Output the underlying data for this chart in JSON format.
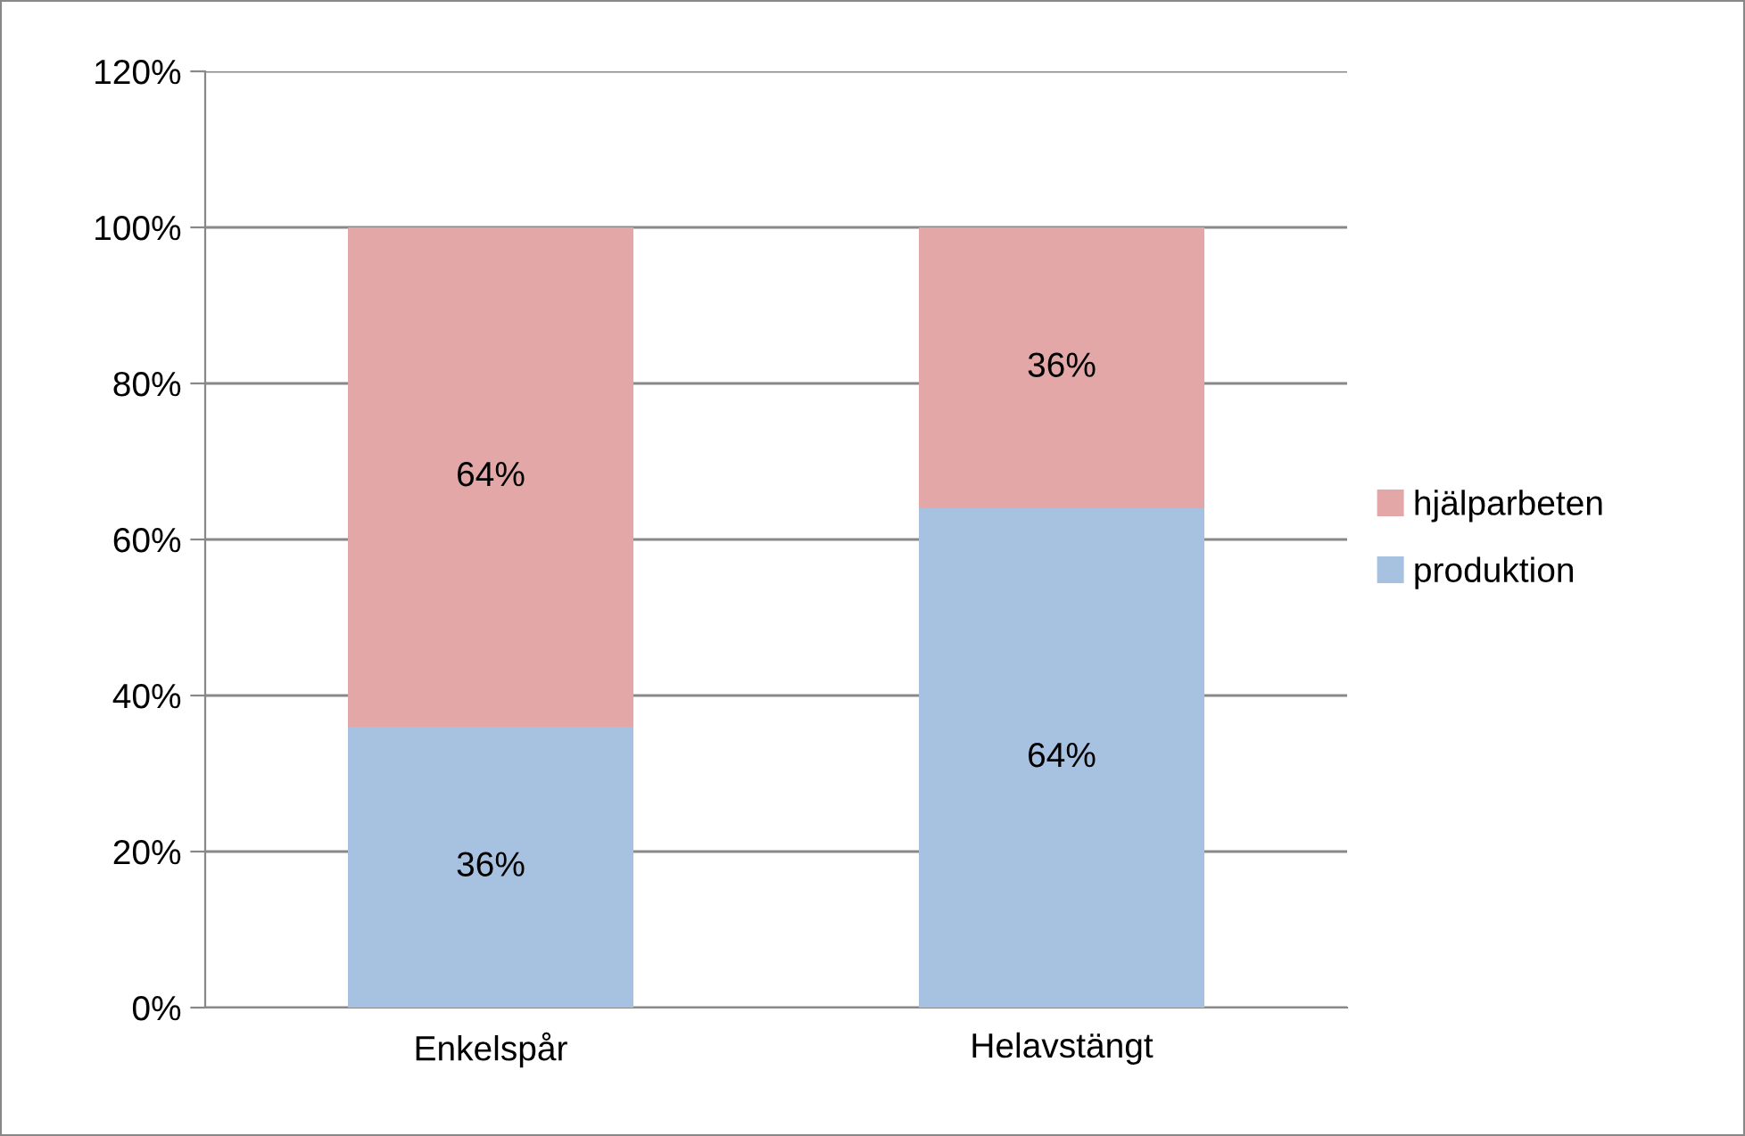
{
  "chart_data": {
    "type": "bar",
    "stacked": true,
    "categories": [
      "Enkelspår",
      "Helavstängt"
    ],
    "series": [
      {
        "name": "produktion",
        "color": "#a7c1e0",
        "values": [
          36,
          64
        ],
        "value_labels": [
          "36%",
          "64%"
        ]
      },
      {
        "name": "hjälparbeten",
        "color": "#e2a7a6",
        "values": [
          64,
          36
        ],
        "value_labels": [
          "64%",
          "36%"
        ]
      }
    ],
    "ylim": [
      0,
      120
    ],
    "yticks": [
      {
        "value": 0,
        "label": "0%"
      },
      {
        "value": 20,
        "label": "20%"
      },
      {
        "value": 40,
        "label": "40%"
      },
      {
        "value": 60,
        "label": "60%"
      },
      {
        "value": 80,
        "label": "80%"
      },
      {
        "value": 100,
        "label": "100%"
      },
      {
        "value": 120,
        "label": "120%"
      }
    ],
    "grid": "y",
    "legend": "right"
  }
}
